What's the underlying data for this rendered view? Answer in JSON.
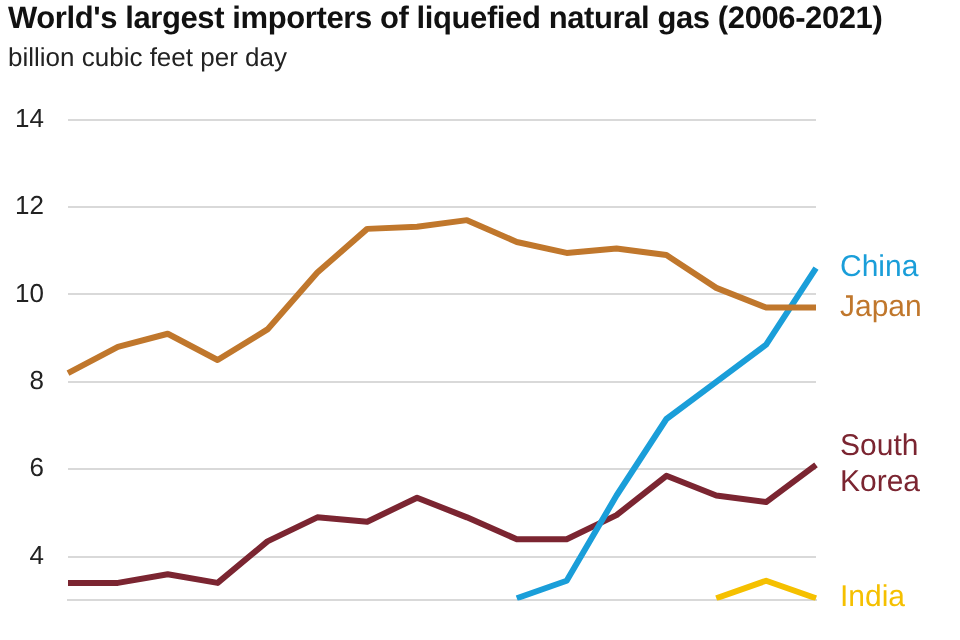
{
  "chart_data": {
    "type": "line",
    "title": "World's largest importers of liquefied natural gas (2006-2021)",
    "subtitle": "billion cubic feet per day",
    "categories": [
      null,
      null,
      null,
      null,
      null,
      null,
      null,
      null,
      null,
      null,
      null,
      null,
      null,
      null,
      null,
      null
    ],
    "series": [
      {
        "name": "Japan",
        "color": "#c0772c",
        "values": [
          8.2,
          8.8,
          9.1,
          8.5,
          9.2,
          10.5,
          11.5,
          11.55,
          11.7,
          11.2,
          10.95,
          11.05,
          10.9,
          10.15,
          9.7,
          9.7
        ]
      },
      {
        "name": "China",
        "color": "#1a9ed9",
        "values": [
          null,
          null,
          null,
          null,
          null,
          null,
          null,
          null,
          null,
          3.05,
          3.45,
          5.4,
          7.15,
          8.0,
          8.85,
          10.6
        ]
      },
      {
        "name": "South Korea",
        "color": "#7b2531",
        "values": [
          3.4,
          3.4,
          3.6,
          3.4,
          4.35,
          4.9,
          4.8,
          5.35,
          4.9,
          4.4,
          4.4,
          4.95,
          5.85,
          5.4,
          5.25,
          6.1
        ]
      },
      {
        "name": "India",
        "color": "#f5c000",
        "values": [
          null,
          null,
          null,
          null,
          null,
          null,
          null,
          null,
          null,
          null,
          null,
          null,
          null,
          3.05,
          3.45,
          3.05
        ]
      }
    ],
    "ylim": [
      3,
      14
    ],
    "yticks": [
      4,
      6,
      8,
      10,
      12,
      14
    ],
    "grid": "y",
    "legend": false,
    "marker": "none",
    "line_style": "solid",
    "tick_labels": "y"
  }
}
